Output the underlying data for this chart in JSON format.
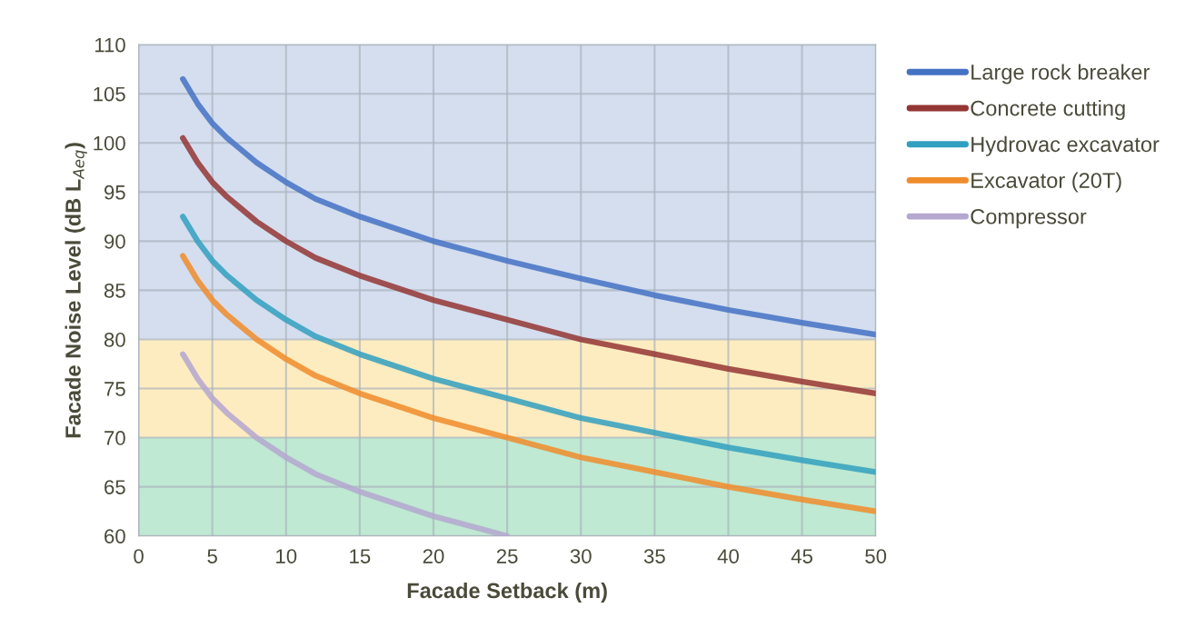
{
  "chart_data": {
    "type": "line",
    "xlabel": "Facade Setback (m)",
    "ylabel": "Facade Noise Level (dB L$_{Aeq}$)",
    "x": [
      3,
      4,
      5,
      6,
      8,
      10,
      12,
      15,
      20,
      25,
      30,
      35,
      40,
      45,
      50
    ],
    "series": [
      {
        "name": "Large rock breaker",
        "color": "#4472c4",
        "values": [
          106.5,
          104,
          102,
          100.5,
          98,
          96,
          94.3,
          92.5,
          90,
          88,
          86.2,
          84.5,
          83,
          81.7,
          80.5
        ]
      },
      {
        "name": "Concrete cutting",
        "color": "#943634",
        "values": [
          100.5,
          98,
          96,
          94.5,
          92,
          90,
          88.3,
          86.5,
          84,
          82,
          80,
          78.5,
          77,
          75.7,
          74.5
        ]
      },
      {
        "name": "Hydrovac excavator",
        "color": "#31a0c0",
        "values": [
          92.5,
          90,
          88,
          86.5,
          84,
          82,
          80.3,
          78.5,
          76,
          74,
          72,
          70.5,
          69,
          67.7,
          66.5
        ]
      },
      {
        "name": "Excavator (20T)",
        "color": "#f08c2c",
        "values": [
          88.5,
          86,
          84,
          82.5,
          80,
          78,
          76.3,
          74.5,
          72,
          70,
          68,
          66.5,
          65,
          63.7,
          62.5
        ]
      },
      {
        "name": "Compressor",
        "color": "#b4a7d0",
        "values": [
          78.5,
          76,
          74,
          72.5,
          70,
          68,
          66.3,
          64.5,
          62,
          60,
          null,
          null,
          null,
          null,
          null
        ]
      }
    ],
    "bands": [
      {
        "axis": "y",
        "from": 80,
        "to": 110,
        "color": "#d4deee"
      },
      {
        "axis": "y",
        "from": 70,
        "to": 80,
        "color": "#fdecc0"
      },
      {
        "axis": "y",
        "from": 60,
        "to": 70,
        "color": "#bfe9d2"
      }
    ],
    "xlim": [
      0,
      50
    ],
    "xticks": [
      0,
      5,
      10,
      15,
      20,
      25,
      30,
      35,
      40,
      45,
      50
    ],
    "ylim": [
      60,
      110
    ],
    "yticks": [
      60,
      65,
      70,
      75,
      80,
      85,
      90,
      95,
      100,
      105,
      110
    ],
    "grid": true,
    "legend": "right",
    "line_style": "solid",
    "marker": "none"
  }
}
